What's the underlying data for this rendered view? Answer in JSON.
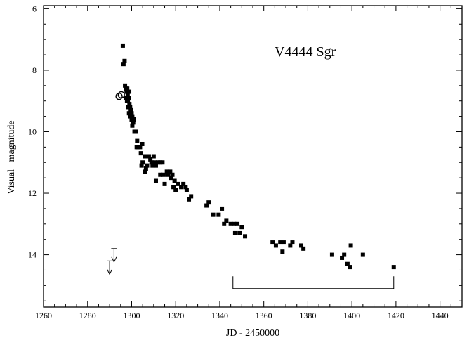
{
  "chart_data": {
    "type": "scatter",
    "title": "V4444 Sgr",
    "xlabel": "JD - 2450000",
    "ylabel": "Visual   magnitude",
    "xlim": [
      1260,
      1450
    ],
    "ylim": [
      15.7,
      5.9
    ],
    "y_inverted": true,
    "x_ticks": [
      1260,
      1280,
      1300,
      1320,
      1340,
      1360,
      1380,
      1400,
      1420,
      1440
    ],
    "y_ticks": [
      6,
      8,
      10,
      12,
      14
    ],
    "x_tick_labels": [
      "1260",
      "1280",
      "1300",
      "1320",
      "1340",
      "1360",
      "1380",
      "1400",
      "1420",
      "1440"
    ],
    "y_tick_labels": [
      "6",
      "8",
      "10",
      "12",
      "14"
    ],
    "grid": false,
    "series": [
      {
        "marker": "filled-square",
        "points": [
          [
            1296.0,
            7.2
          ],
          [
            1296.3,
            7.8
          ],
          [
            1296.8,
            7.7
          ],
          [
            1297.0,
            8.5
          ],
          [
            1297.4,
            8.6
          ],
          [
            1297.7,
            8.7
          ],
          [
            1298.0,
            8.6
          ],
          [
            1298.2,
            8.8
          ],
          [
            1297.5,
            8.9
          ],
          [
            1297.9,
            9.0
          ],
          [
            1298.3,
            9.0
          ],
          [
            1298.6,
            8.9
          ],
          [
            1298.9,
            8.7
          ],
          [
            1299.0,
            9.1
          ],
          [
            1298.5,
            9.2
          ],
          [
            1299.3,
            9.2
          ],
          [
            1298.8,
            9.4
          ],
          [
            1299.6,
            9.3
          ],
          [
            1300.0,
            9.4
          ],
          [
            1299.4,
            9.5
          ],
          [
            1300.3,
            9.5
          ],
          [
            1300.0,
            9.6
          ],
          [
            1300.7,
            9.7
          ],
          [
            1300.3,
            9.8
          ],
          [
            1301.0,
            9.6
          ],
          [
            1301.3,
            10.0
          ],
          [
            1302.0,
            10.0
          ],
          [
            1302.5,
            10.3
          ],
          [
            1303.0,
            10.5
          ],
          [
            1302.3,
            10.5
          ],
          [
            1303.8,
            10.5
          ],
          [
            1304.2,
            10.7
          ],
          [
            1304.8,
            10.4
          ],
          [
            1305.0,
            11.0
          ],
          [
            1304.5,
            11.1
          ],
          [
            1306.0,
            10.8
          ],
          [
            1306.5,
            11.2
          ],
          [
            1306.0,
            11.3
          ],
          [
            1307.0,
            11.1
          ],
          [
            1307.8,
            10.8
          ],
          [
            1308.5,
            10.9
          ],
          [
            1309.0,
            11.0
          ],
          [
            1309.5,
            11.1
          ],
          [
            1310.0,
            10.8
          ],
          [
            1310.5,
            11.0
          ],
          [
            1311.0,
            11.1
          ],
          [
            1312.0,
            11.0
          ],
          [
            1313.0,
            11.0
          ],
          [
            1314.0,
            11.0
          ],
          [
            1311.0,
            11.6
          ],
          [
            1313.0,
            11.4
          ],
          [
            1314.5,
            11.4
          ],
          [
            1315.0,
            11.7
          ],
          [
            1316.0,
            11.3
          ],
          [
            1316.5,
            11.4
          ],
          [
            1317.5,
            11.3
          ],
          [
            1318.0,
            11.5
          ],
          [
            1318.5,
            11.4
          ],
          [
            1319.0,
            11.8
          ],
          [
            1319.5,
            11.6
          ],
          [
            1320.0,
            11.9
          ],
          [
            1321.0,
            11.7
          ],
          [
            1322.5,
            11.8
          ],
          [
            1323.5,
            11.7
          ],
          [
            1324.5,
            11.8
          ],
          [
            1325.0,
            11.9
          ],
          [
            1326.0,
            12.2
          ],
          [
            1327.0,
            12.1
          ],
          [
            1334.0,
            12.4
          ],
          [
            1335.0,
            12.3
          ],
          [
            1337.0,
            12.7
          ],
          [
            1339.5,
            12.7
          ],
          [
            1341.0,
            12.5
          ],
          [
            1342.0,
            13.0
          ],
          [
            1343.0,
            12.9
          ],
          [
            1345.0,
            13.0
          ],
          [
            1346.5,
            13.0
          ],
          [
            1347.0,
            13.3
          ],
          [
            1348.0,
            13.0
          ],
          [
            1349.0,
            13.3
          ],
          [
            1350.0,
            13.1
          ],
          [
            1351.5,
            13.4
          ],
          [
            1364.0,
            13.6
          ],
          [
            1365.5,
            13.7
          ],
          [
            1367.5,
            13.6
          ],
          [
            1368.5,
            13.9
          ],
          [
            1369.0,
            13.6
          ],
          [
            1372.0,
            13.7
          ],
          [
            1373.0,
            13.6
          ],
          [
            1377.0,
            13.7
          ],
          [
            1378.0,
            13.8
          ],
          [
            1391.0,
            14.0
          ],
          [
            1395.5,
            14.1
          ],
          [
            1396.5,
            14.0
          ],
          [
            1398.0,
            14.3
          ],
          [
            1399.0,
            14.4
          ],
          [
            1399.5,
            13.7
          ],
          [
            1405.0,
            14.0
          ],
          [
            1419.0,
            14.4
          ]
        ]
      },
      {
        "marker": "open-circle",
        "points": [
          [
            1294.3,
            8.85
          ],
          [
            1295.3,
            8.8
          ]
        ]
      },
      {
        "marker": "upper-limit-arrow",
        "points": [
          [
            1290.0,
            14.2
          ],
          [
            1292.0,
            13.8
          ]
        ]
      }
    ],
    "bracket": {
      "x_start": 1346,
      "x_end": 1419,
      "y": 15.1,
      "y_top": 14.7
    }
  }
}
